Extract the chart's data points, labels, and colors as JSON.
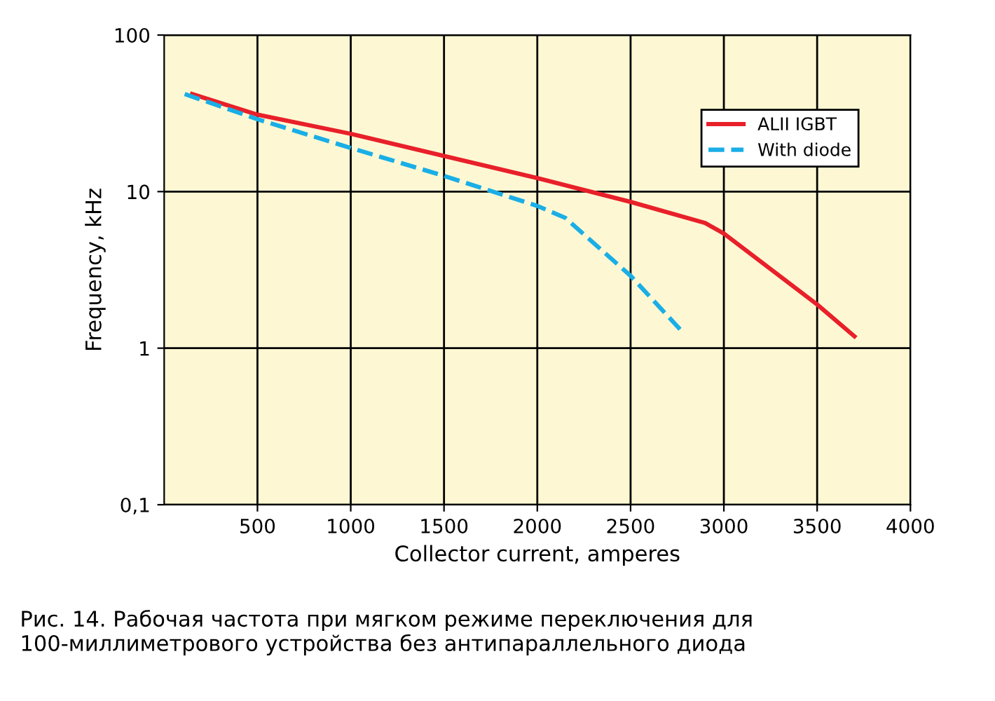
{
  "chart_data": {
    "type": "line",
    "xlabel": "Collector current, amperes",
    "ylabel": "Frequency, kHz",
    "log": "y",
    "grid": true,
    "legend": "top right",
    "line_style": "solid",
    "xlim": [
      0,
      4000
    ],
    "xticks": [
      500,
      1000,
      1500,
      2000,
      2500,
      3000,
      3500,
      4000
    ],
    "ylim": [
      0.1,
      100
    ],
    "yticks": [
      {
        "value": 0.1,
        "label": "0,1"
      },
      1,
      10,
      100
    ],
    "series": [
      {
        "name": "ALII IGBT",
        "color": "#e8202a",
        "x": [
          150,
          500,
          1000,
          1500,
          2000,
          2500,
          2900,
          3000,
          3500,
          3700
        ],
        "values": [
          42,
          31,
          23.4,
          16.9,
          12.2,
          8.6,
          6.3,
          5.4,
          1.9,
          1.19
        ]
      },
      {
        "name": "With diode",
        "color": "#1aaee6",
        "line_style": "dashed",
        "x": [
          110,
          500,
          1000,
          1500,
          2000,
          2150,
          2500,
          2770
        ],
        "values": [
          42,
          29,
          19,
          12.6,
          8.1,
          6.8,
          2.9,
          1.3
        ]
      }
    ],
    "annotations": [
      "Рис. 14. Рабочая частота при мягком режиме переключения для 100-миллиметрового устройства без антипараллельного диода"
    ]
  }
}
